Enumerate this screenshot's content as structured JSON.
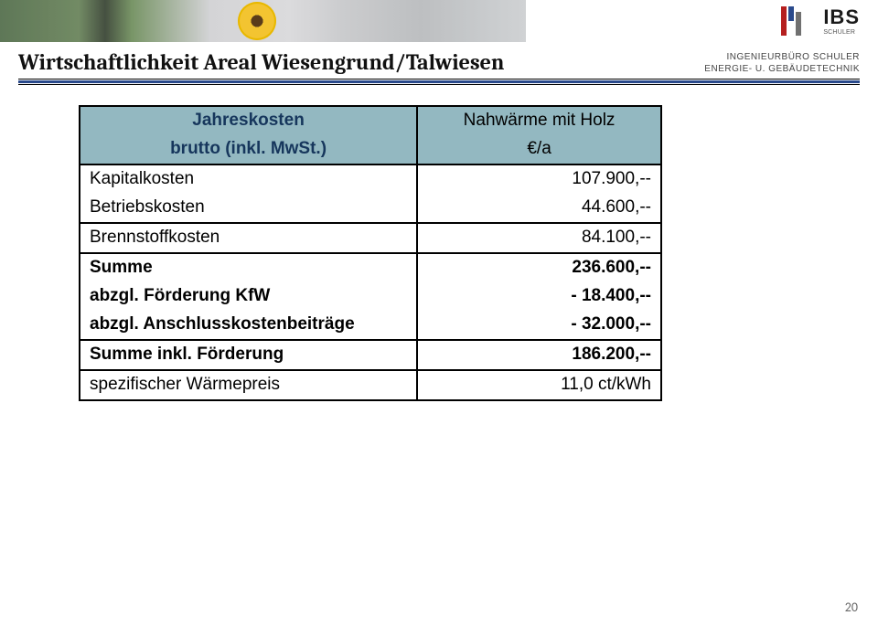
{
  "header": {
    "logo_name": "IBS",
    "logo_sub": "SCHULER",
    "tagline_line1": "INGENIEURBÜRO SCHULER",
    "tagline_line2": "ENERGIE- U. GEBÄUDETECHNIK"
  },
  "title": "Wirtschaftlichkeit Areal Wiesengrund/Talwiesen",
  "table": {
    "header_left_top": "Jahreskosten",
    "header_left_bottom": "brutto (inkl. MwSt.)",
    "header_right_top": "Nahwärme mit Holz",
    "header_right_bottom": "€/a",
    "rows": [
      {
        "label": "Kapitalkosten",
        "value": "107.900,--",
        "bold": false,
        "group": "a"
      },
      {
        "label": "Betriebskosten",
        "value": "44.600,--",
        "bold": false,
        "group": "a"
      },
      {
        "label": "Brennstoffkosten",
        "value": "84.100,--",
        "bold": false,
        "group": "solo"
      },
      {
        "label": "Summe",
        "value": "236.600,--",
        "bold": true,
        "group": "b"
      },
      {
        "label": "abzgl. Förderung KfW",
        "value": "- 18.400,--",
        "bold": true,
        "group": "b"
      },
      {
        "label": "abzgl. Anschlusskostenbeiträge",
        "value": "- 32.000,--",
        "bold": true,
        "group": "b"
      },
      {
        "label": "Summe inkl. Förderung",
        "value": "186.200,--",
        "bold": true,
        "group": "solo"
      },
      {
        "label": "spezifischer Wärmepreis",
        "value": "11,0 ct/kWh",
        "bold": false,
        "group": "solo"
      }
    ],
    "colors": {
      "header_bg": "#93b8c1",
      "header_text": "#16365c",
      "border": "#000000"
    }
  },
  "page_number": "20"
}
